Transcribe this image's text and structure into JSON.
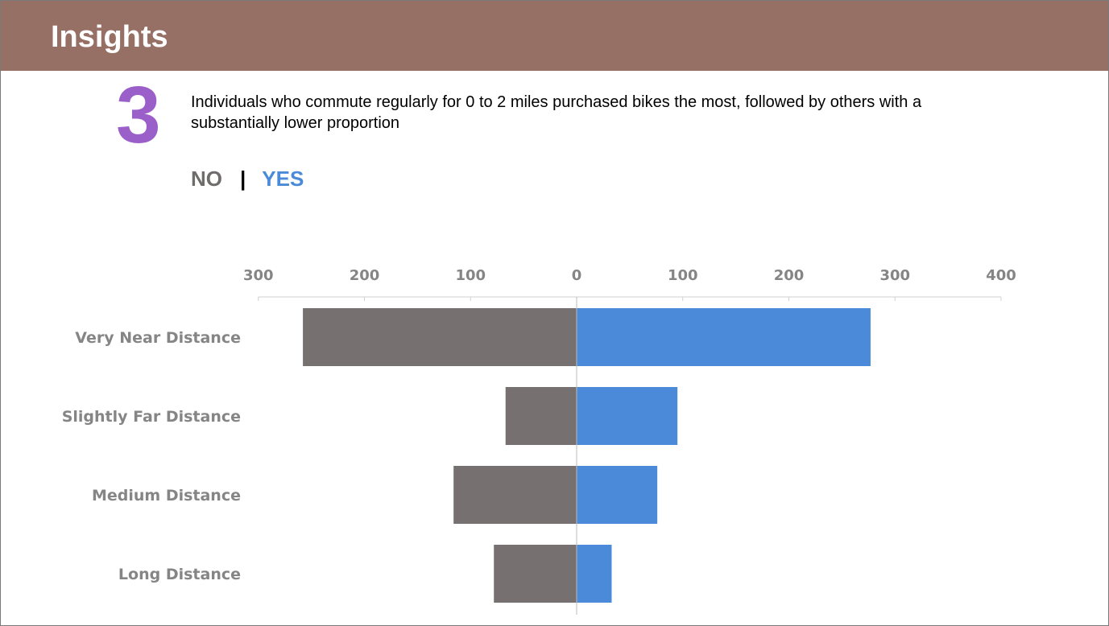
{
  "header": {
    "title": "Insights"
  },
  "insight": {
    "number": "3",
    "text": "Individuals who commute regularly for 0 to 2 miles purchased bikes the most, followed by others with a substantially lower proportion"
  },
  "legend": {
    "no_label": "NO",
    "separator": "|",
    "yes_label": "YES"
  },
  "colors": {
    "no": "#767070",
    "yes": "#4a8ad8",
    "header": "#966f65",
    "number": "#9b5fc9"
  },
  "chart_data": {
    "type": "bar",
    "orientation": "horizontal-diverging",
    "categories": [
      "Very Near Distance",
      "Slightly Far Distance",
      "Medium Distance",
      "Long Distance"
    ],
    "series": [
      {
        "name": "NO",
        "values": [
          258,
          67,
          116,
          78
        ]
      },
      {
        "name": "YES",
        "values": [
          277,
          95,
          76,
          33
        ]
      }
    ],
    "xlim": [
      -300,
      400
    ],
    "x_ticks": [
      -300,
      -200,
      -100,
      0,
      100,
      200,
      300,
      400
    ],
    "x_tick_labels": [
      "300",
      "200",
      "100",
      "0",
      "100",
      "200",
      "300",
      "400"
    ],
    "axis_position": "top",
    "grid": false,
    "title": "",
    "xlabel": "",
    "ylabel": ""
  }
}
